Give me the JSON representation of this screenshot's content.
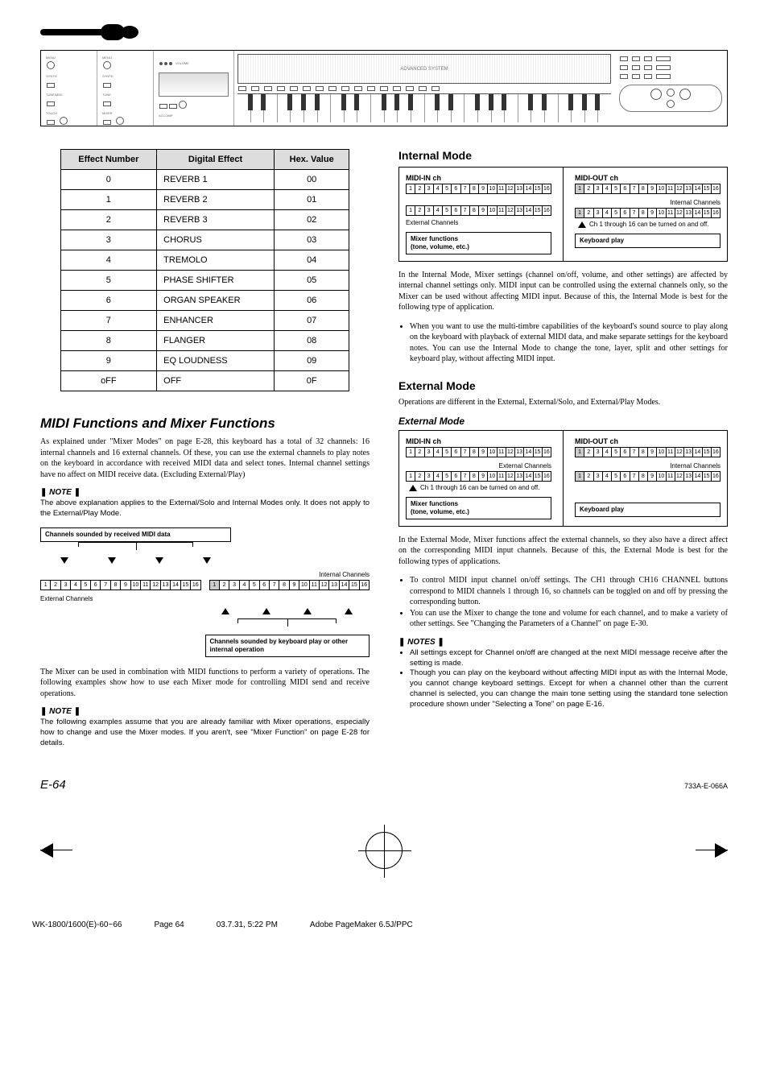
{
  "effects_table": {
    "headers": [
      "Effect Number",
      "Digital Effect",
      "Hex. Value"
    ],
    "rows": [
      [
        "0",
        "REVERB 1",
        "00"
      ],
      [
        "1",
        "REVERB 2",
        "01"
      ],
      [
        "2",
        "REVERB 3",
        "02"
      ],
      [
        "3",
        "CHORUS",
        "03"
      ],
      [
        "4",
        "TREMOLO",
        "04"
      ],
      [
        "5",
        "PHASE SHIFTER",
        "05"
      ],
      [
        "6",
        "ORGAN SPEAKER",
        "06"
      ],
      [
        "7",
        "ENHANCER",
        "07"
      ],
      [
        "8",
        "FLANGER",
        "08"
      ],
      [
        "9",
        "EQ LOUDNESS",
        "09"
      ],
      [
        "oFF",
        "OFF",
        "0F"
      ]
    ]
  },
  "left": {
    "title": "MIDI Functions and Mixer Functions",
    "intro": "As explained under \"Mixer Modes\" on page E-28, this keyboard has a total of 32 channels: 16 internal channels and 16 external channels. Of these, you can use the external channels to play notes on the keyboard in accordance with received MIDI data and select tones. Internal channel settings have no affect on MIDI receive data. (Excluding External/Play)",
    "note1_label": "NOTE",
    "note1": "The above explanation applies to the External/Solo and Internal Modes only. It does not apply to the External/Play Mode.",
    "diagram": {
      "box_top": "Channels sounded by received MIDI data",
      "ext_label": "External Channels",
      "int_label": "Internal Channels",
      "box_bottom": "Channels sounded by keyboard play or other internal operation"
    },
    "after_diagram": "The Mixer can be used in combination with MIDI functions to perform a variety of operations. The following examples show how to use each Mixer mode for controlling MIDI send and receive operations.",
    "note2_label": "NOTE",
    "note2": "The following examples assume that you are already familiar with Mixer operations, especially how to change and use the Mixer modes. If you aren't, see \"Mixer Function\" on page E-28 for details."
  },
  "right": {
    "internal_title": "Internal Mode",
    "internal_diagram": {
      "midi_in": "MIDI-IN ch",
      "midi_out": "MIDI-OUT ch",
      "ext_label": "External Channels",
      "int_label": "Internal Channels",
      "ch_caption": "Ch 1 through 16 can be turned on and off.",
      "mixer_box": "Mixer functions\n(tone, volume, etc.)",
      "keyboard_box": "Keyboard play"
    },
    "internal_p1": "In the Internal Mode, Mixer settings (channel on/off, volume, and other settings) are affected by internal channel settings only. MIDI input can be controlled using the external channels only, so the Mixer can be used without affecting MIDI input. Because of this, the Internal Mode is best for the following type of application.",
    "internal_bullet": "When you want to use the multi-timbre capabilities of the keyboard's sound source to play along on the keyboard with playback of external MIDI data, and make separate settings for the keyboard notes. You can use the Internal Mode to change the tone, layer, split and other settings for keyboard play, without affecting MIDI input.",
    "external_title": "External Mode",
    "external_intro": "Operations are different in the External, External/Solo, and External/Play Modes.",
    "external_mode_hdr": "External Mode",
    "external_diagram": {
      "midi_in": "MIDI-IN ch",
      "midi_out": "MIDI-OUT ch",
      "ext_label": "External Channels",
      "int_label": "Internal Channels",
      "ch_caption": "Ch 1 through 16 can be turned on and off.",
      "mixer_box": "Mixer functions\n(tone, volume, etc.)",
      "keyboard_box": "Keyboard play"
    },
    "external_p1": "In the External Mode, Mixer functions affect the external channels, so they also have a direct affect on the corresponding MIDI input channels. Because of this, the External Mode is best for the following types of applications.",
    "external_bullets": [
      "To control MIDI input channel on/off settings. The CH1 through CH16 CHANNEL buttons correspond to MIDI channels 1 through 16, so channels can be toggled on and off by pressing the corresponding button.",
      "You can use the Mixer to change the tone and volume for each channel, and to make a variety of other settings. See \"Changing the Parameters of a Channel\" on page E-30."
    ],
    "notes_label": "NOTES",
    "notes": [
      "All settings except for Channel on/off are changed at the next MIDI message receive after the setting is made.",
      "Though you can play on the keyboard without affecting MIDI input as with the Internal Mode, you cannot change keyboard settings. Except for when a channel other than the current channel is selected, you can change the main tone setting using the standard tone selection procedure shown under \"Selecting a Tone\" on page E-16."
    ]
  },
  "footer": {
    "page": "E-64",
    "part": "733A-E-066A"
  },
  "meta": {
    "file": "WK-1800/1600(E)-60~66",
    "page": "Page 64",
    "date": "03.7.31, 5:22 PM",
    "app": "Adobe PageMaker 6.5J/PPC"
  },
  "channels": [
    "1",
    "2",
    "3",
    "4",
    "5",
    "6",
    "7",
    "8",
    "9",
    "10",
    "11",
    "12",
    "13",
    "14",
    "15",
    "16"
  ]
}
